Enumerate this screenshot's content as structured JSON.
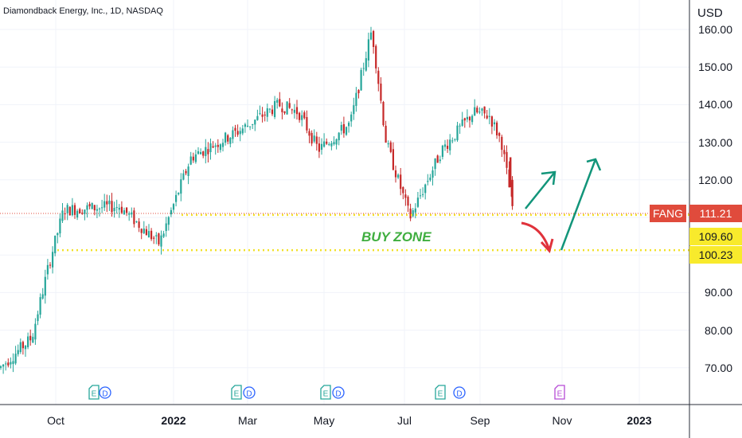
{
  "header": {
    "title": "Diamondback Energy, Inc., 1D, NASDAQ",
    "currency": "USD"
  },
  "price_axis": {
    "ticks": [
      "160.00",
      "150.00",
      "140.00",
      "130.00",
      "120.00",
      "90.00",
      "80.00",
      "70.00"
    ]
  },
  "time_axis": {
    "ticks": [
      {
        "label": "Oct",
        "bold": false
      },
      {
        "label": "2022",
        "bold": true
      },
      {
        "label": "Mar",
        "bold": false
      },
      {
        "label": "May",
        "bold": false
      },
      {
        "label": "Jul",
        "bold": false
      },
      {
        "label": "Sep",
        "bold": false
      },
      {
        "label": "Nov",
        "bold": false
      },
      {
        "label": "2023",
        "bold": true
      }
    ]
  },
  "tags": {
    "symbol": "FANG",
    "last_price": "111.21",
    "upper_zone": "109.60",
    "lower_zone": "100.23"
  },
  "annotation": {
    "buy_zone": "BUY ZONE"
  },
  "events": [
    "E",
    "D",
    "E",
    "D",
    "E",
    "D",
    "E",
    "D",
    "E"
  ],
  "colors": {
    "up": "#26a69a",
    "down": "#c62828",
    "zone_line": "#f2e12a",
    "buy_zone_text": "#3fae3f",
    "last_price_tag": "#e04b3c",
    "arrow_green": "#12957a",
    "arrow_red": "#e0323b",
    "earnings": "#26a69a",
    "dividend": "#2962ff",
    "future_earnings": "#b64ad6"
  },
  "chart_data": {
    "type": "candlestick",
    "symbol": "FANG",
    "ylim": [
      63,
      164
    ],
    "zones": [
      109.6,
      100.23
    ],
    "last_price": 111.21,
    "series": [
      {
        "x": "Aug 2021",
        "y": 70
      },
      {
        "x": "Sep 2021",
        "y": 78
      },
      {
        "x": "Early Oct 2021",
        "y": 98
      },
      {
        "x": "Oct 2021",
        "y": 112
      },
      {
        "x": "Nov 2021",
        "y": 113
      },
      {
        "x": "Dec 2021",
        "y": 103
      },
      {
        "x": "Jan 2022",
        "y": 126
      },
      {
        "x": "Feb 2022",
        "y": 133
      },
      {
        "x": "Mar 2022",
        "y": 140
      },
      {
        "x": "Apr 2022",
        "y": 138
      },
      {
        "x": "Late Apr 2022",
        "y": 128
      },
      {
        "x": "May 2022",
        "y": 135
      },
      {
        "x": "Early Jun 2022",
        "y": 160
      },
      {
        "x": "Late Jun 2022",
        "y": 130
      },
      {
        "x": "Jul 2022",
        "y": 110
      },
      {
        "x": "Aug 2022",
        "y": 128
      },
      {
        "x": "Sep 2022",
        "y": 138
      },
      {
        "x": "Mid Sep 2022",
        "y": 130
      },
      {
        "x": "Late Sep 2022",
        "y": 111.21
      }
    ]
  }
}
